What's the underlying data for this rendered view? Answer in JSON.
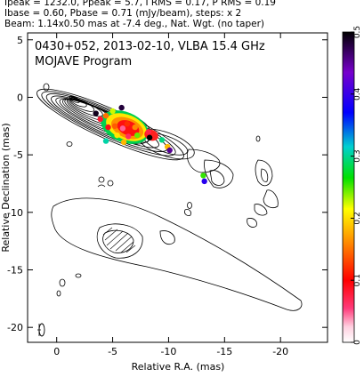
{
  "header": {
    "line1": "Ipeak = 1232.0, Ppeak = 5.7, I RMS = 0.17, P RMS = 0.19",
    "line2": "Ibase = 0.60, Pbase = 0.71 (mJy/beam), steps: x 2",
    "line3": "Beam: 1.14x0.50 mas at -7.4 deg., Nat. Wgt. (no taper)"
  },
  "plot": {
    "title_line1": "0430+052, 2013-02-10, VLBA 15.4 GHz",
    "title_line2": "MOJAVE Program"
  },
  "chart_data": {
    "type": "heatmap",
    "xlabel": "Relative R.A. (mas)",
    "ylabel": "Relative Declination (mas)",
    "xlim": [
      2.6,
      -24.2
    ],
    "ylim": [
      -21.3,
      5.6
    ],
    "x_ticks": [
      0,
      -5,
      -10,
      -15,
      -20
    ],
    "x_tick_labels": [
      "0",
      "-5",
      "-10",
      "-15",
      "-20"
    ],
    "y_ticks": [
      5,
      0,
      -5,
      -10,
      -15,
      -20
    ],
    "y_tick_labels": [
      "5",
      "0",
      "-5",
      "-10",
      "-15",
      "-20"
    ],
    "colorbar": {
      "range": [
        0,
        0.5
      ],
      "ticks": [
        0,
        0.1,
        0.2,
        0.3,
        0.4,
        0.5
      ],
      "tick_labels": [
        "0",
        "0.1",
        "0.2",
        "0.3",
        "0.4",
        "0.5"
      ],
      "colors": [
        "#ffffff",
        "#ff3a7a",
        "#ff0000",
        "#ff8800",
        "#ffff00",
        "#00e000",
        "#00d0d0",
        "#0000ff",
        "#7700cc",
        "#000000"
      ]
    },
    "contours": {
      "base_mJy_per_beam": 0.6,
      "step_factor": 2,
      "peak_mJy_per_beam": 1232.0
    },
    "beam": {
      "major_mas": 1.14,
      "minor_mas": 0.5,
      "pa_deg": -7.4,
      "center": [
        -1.0,
        -20.1
      ]
    },
    "polarization_spots": [
      {
        "x": -3.5,
        "y": -1.4,
        "value": 0.49
      },
      {
        "x": -3.9,
        "y": -1.9,
        "value": 0.08
      },
      {
        "x": -4.4,
        "y": -1.6,
        "value": 0.15
      },
      {
        "x": -5.0,
        "y": -1.2,
        "value": 0.22
      },
      {
        "x": -5.8,
        "y": -0.9,
        "value": 0.48
      },
      {
        "x": -4.6,
        "y": -2.6,
        "value": 0.09
      },
      {
        "x": -5.2,
        "y": -2.5,
        "value": 0.14
      },
      {
        "x": -5.9,
        "y": -2.7,
        "value": 0.04
      },
      {
        "x": -6.3,
        "y": -2.3,
        "value": 0.12
      },
      {
        "x": -7.0,
        "y": -2.6,
        "value": 0.16
      },
      {
        "x": -5.4,
        "y": -3.3,
        "value": 0.2
      },
      {
        "x": -6.4,
        "y": -3.4,
        "value": 0.06
      },
      {
        "x": -7.2,
        "y": -3.3,
        "value": 0.24
      },
      {
        "x": -6.0,
        "y": -3.9,
        "value": 0.18
      },
      {
        "x": -4.4,
        "y": -3.8,
        "value": 0.3
      },
      {
        "x": -8.2,
        "y": -3.0,
        "value": 0.07
      },
      {
        "x": -8.3,
        "y": -3.5,
        "value": 0.5
      },
      {
        "x": -9.4,
        "y": -3.7,
        "value": 0.29
      },
      {
        "x": -9.9,
        "y": -4.3,
        "value": 0.18
      },
      {
        "x": -10.1,
        "y": -4.6,
        "value": 0.45
      },
      {
        "x": -13.1,
        "y": -6.8,
        "value": 0.25
      },
      {
        "x": -13.2,
        "y": -7.3,
        "value": 0.39
      }
    ]
  }
}
